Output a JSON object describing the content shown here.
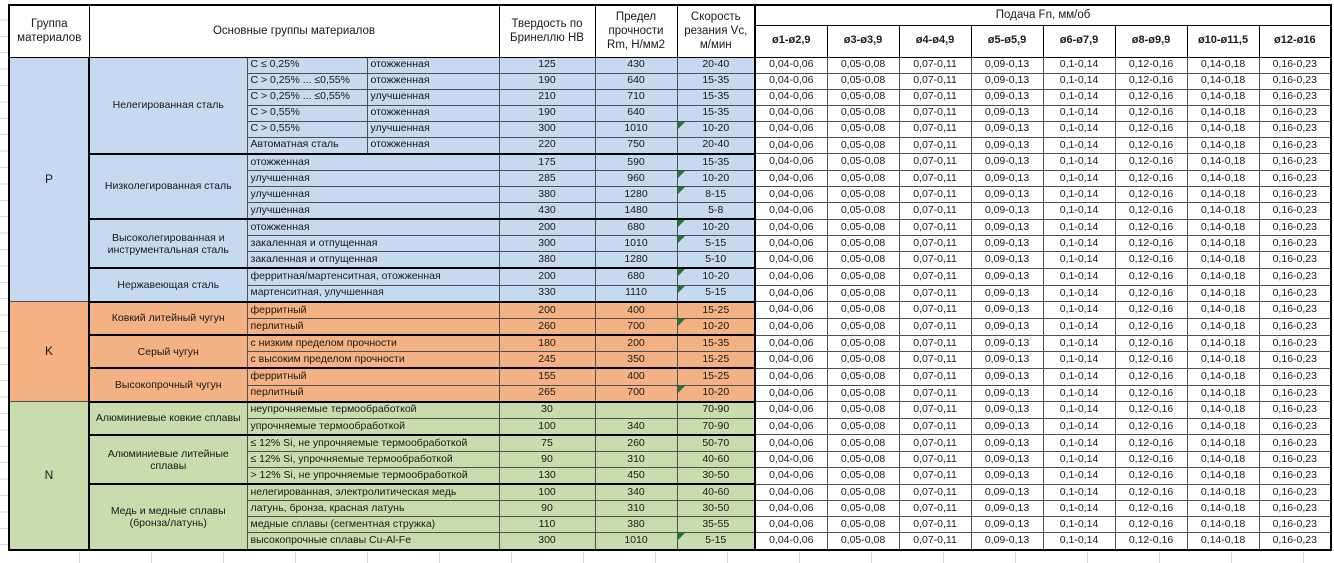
{
  "header": {
    "col_group": "Группа материалов",
    "col_main": "Основные группы материалов",
    "col_hb": "Твердость по Бринеллю HB",
    "col_rm": "Предел прочности Rm, Н/мм2",
    "col_vc": "Скорость резания Vc, м/мин",
    "col_feed": "Подача Fn, мм/об",
    "feed_cols": [
      "ø1-ø2,9",
      "ø3-ø3,9",
      "ø4-ø4,9",
      "ø5-ø5,9",
      "ø6-ø7,9",
      "ø8-ø9,9",
      "ø10-ø11,5",
      "ø12-ø16"
    ]
  },
  "feed_values": [
    "0,04-0,06",
    "0,05-0,08",
    "0,07-0,11",
    "0,09-0,13",
    "0,1-0,14",
    "0,12-0,16",
    "0,14-0,18",
    "0,16-0,23"
  ],
  "colors": {
    "group_p": "#C5D9F1",
    "group_k": "#F4B183",
    "group_n": "#C8DCAE",
    "marker": "#1E7A33",
    "feed_bg": "#FFFFFF"
  },
  "groups": [
    {
      "code": "P",
      "color": "#C5D9F1",
      "subgroups": [
        {
          "name": "Нелегированная сталь",
          "rows": [
            {
              "sub1": "C ≤ 0,25%",
              "sub2": "отожженная",
              "hb": "125",
              "rm": "430",
              "vc": "20-40",
              "marker": false
            },
            {
              "sub1": "C > 0,25% ... ≤0,55%",
              "sub2": "отожженная",
              "hb": "190",
              "rm": "640",
              "vc": "15-35",
              "marker": false
            },
            {
              "sub1": "C > 0,25% ... ≤0,55%",
              "sub2": "улучшенная",
              "hb": "210",
              "rm": "710",
              "vc": "15-35",
              "marker": false
            },
            {
              "sub1": "C > 0,55%",
              "sub2": "отожженная",
              "hb": "190",
              "rm": "640",
              "vc": "15-35",
              "marker": false
            },
            {
              "sub1": "C > 0,55%",
              "sub2": "улучшенная",
              "hb": "300",
              "rm": "1010",
              "vc": "10-20",
              "marker": true
            },
            {
              "sub1": "Автоматная сталь",
              "sub2": "отожженная",
              "hb": "220",
              "rm": "750",
              "vc": "20-40",
              "marker": false
            }
          ]
        },
        {
          "name": "Низколегированная сталь",
          "rows": [
            {
              "sub1": "отожженная",
              "sub2": null,
              "hb": "175",
              "rm": "590",
              "vc": "15-35",
              "marker": false
            },
            {
              "sub1": "улучшенная",
              "sub2": null,
              "hb": "285",
              "rm": "960",
              "vc": "10-20",
              "marker": true
            },
            {
              "sub1": "улучшенная",
              "sub2": null,
              "hb": "380",
              "rm": "1280",
              "vc": "8-15",
              "marker": true
            },
            {
              "sub1": "улучшенная",
              "sub2": null,
              "hb": "430",
              "rm": "1480",
              "vc": "5-8",
              "marker": false
            }
          ]
        },
        {
          "name": "Высоколегированная и инструментальная сталь",
          "rows": [
            {
              "sub1": "отожженная",
              "sub2": null,
              "hb": "200",
              "rm": "680",
              "vc": "10-20",
              "marker": true
            },
            {
              "sub1": "закаленная и отпущенная",
              "sub2": null,
              "hb": "300",
              "rm": "1010",
              "vc": "5-15",
              "marker": true
            },
            {
              "sub1": "закаленная и отпущенная",
              "sub2": null,
              "hb": "380",
              "rm": "1280",
              "vc": "5-10",
              "marker": false
            }
          ]
        },
        {
          "name": "Нержавеющая сталь",
          "rows": [
            {
              "sub1": "ферритная/мартенситная, отожженная",
              "sub2": null,
              "hb": "200",
              "rm": "680",
              "vc": "10-20",
              "marker": true
            },
            {
              "sub1": "мартенситная, улучшенная",
              "sub2": null,
              "hb": "330",
              "rm": "1110",
              "vc": "5-15",
              "marker": true
            }
          ]
        }
      ]
    },
    {
      "code": "K",
      "color": "#F4B183",
      "subgroups": [
        {
          "name": "Ковкий литейный чугун",
          "rows": [
            {
              "sub1": "ферритный",
              "sub2": null,
              "hb": "200",
              "rm": "400",
              "vc": "15-25",
              "marker": false
            },
            {
              "sub1": "перлитный",
              "sub2": null,
              "hb": "260",
              "rm": "700",
              "vc": "10-20",
              "marker": true
            }
          ]
        },
        {
          "name": "Серый чугун",
          "rows": [
            {
              "sub1": "с низким пределом прочности",
              "sub2": null,
              "hb": "180",
              "rm": "200",
              "vc": "15-35",
              "marker": false
            },
            {
              "sub1": "с высоким пределом прочности",
              "sub2": null,
              "hb": "245",
              "rm": "350",
              "vc": "15-25",
              "marker": false
            }
          ]
        },
        {
          "name": "Высокопрочный чугун",
          "rows": [
            {
              "sub1": "ферритный",
              "sub2": null,
              "hb": "155",
              "rm": "400",
              "vc": "15-25",
              "marker": false
            },
            {
              "sub1": "перлитный",
              "sub2": null,
              "hb": "265",
              "rm": "700",
              "vc": "10-20",
              "marker": true
            }
          ]
        }
      ]
    },
    {
      "code": "N",
      "color": "#C8DCAE",
      "subgroups": [
        {
          "name": "Алюминиевые ковкие сплавы",
          "rows": [
            {
              "sub1": "неупрочняемые термообработкой",
              "sub2": null,
              "hb": "30",
              "rm": "",
              "vc": "70-90",
              "marker": false
            },
            {
              "sub1": "упрочняемые термообработкой",
              "sub2": null,
              "hb": "100",
              "rm": "340",
              "vc": "70-90",
              "marker": false
            }
          ]
        },
        {
          "name": "Алюминиевые литейные сплавы",
          "rows": [
            {
              "sub1": "≤ 12% Si, не упрочняемые термообработкой",
              "sub2": null,
              "hb": "75",
              "rm": "260",
              "vc": "50-70",
              "marker": false
            },
            {
              "sub1": "≤ 12% Si, упрочняемые термообработкой",
              "sub2": null,
              "hb": "90",
              "rm": "310",
              "vc": "40-60",
              "marker": false
            },
            {
              "sub1": "> 12% Si, не упрочняемые термообработкой",
              "sub2": null,
              "hb": "130",
              "rm": "450",
              "vc": "30-50",
              "marker": false
            }
          ]
        },
        {
          "name": "Медь и медные сплавы (бронза/латунь)",
          "rows": [
            {
              "sub1": "нелегированная, электролитическая медь",
              "sub2": null,
              "hb": "100",
              "rm": "340",
              "vc": "40-60",
              "marker": false
            },
            {
              "sub1": "латунь, бронза, красная латунь",
              "sub2": null,
              "hb": "90",
              "rm": "310",
              "vc": "30-50",
              "marker": false
            },
            {
              "sub1": "медные сплавы (сегментная стружка)",
              "sub2": null,
              "hb": "110",
              "rm": "380",
              "vc": "35-55",
              "marker": false
            },
            {
              "sub1": "высокопрочные сплавы Cu-Al-Fe",
              "sub2": null,
              "hb": "300",
              "rm": "1010",
              "vc": "5-15",
              "marker": true
            }
          ]
        }
      ]
    }
  ]
}
